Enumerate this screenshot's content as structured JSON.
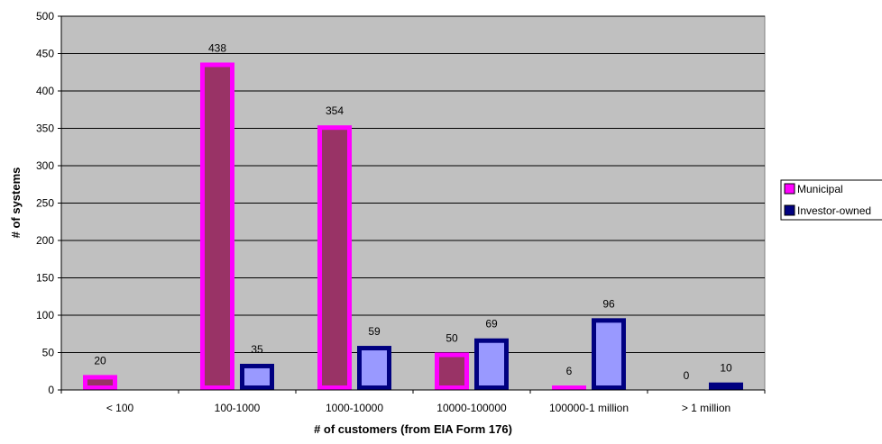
{
  "chart_data": {
    "type": "bar",
    "title": "",
    "xlabel": "# of customers (from EIA Form 176)",
    "ylabel": "# of systems",
    "ylim": [
      0,
      500
    ],
    "ytick_step": 50,
    "grid": true,
    "legend_position": "right",
    "categories": [
      "< 100",
      "100-1000",
      "1000-10000",
      "10000-100000",
      "100000-1 million",
      "> 1 million"
    ],
    "series": [
      {
        "name": "Municipal",
        "values": [
          20,
          438,
          354,
          50,
          6,
          0
        ],
        "border_color": "#ff00ff",
        "fill_color": "#993366"
      },
      {
        "name": "Investor-owned",
        "values": [
          null,
          35,
          59,
          69,
          96,
          10
        ],
        "border_color": "#000080",
        "fill_color": "#9999ff"
      }
    ],
    "data_labels": [
      [
        "20",
        "438",
        "354",
        "50",
        "6",
        "0"
      ],
      [
        "",
        "35",
        "59",
        "69",
        "96",
        "10"
      ]
    ],
    "plot_background": "#c0c0c0"
  }
}
